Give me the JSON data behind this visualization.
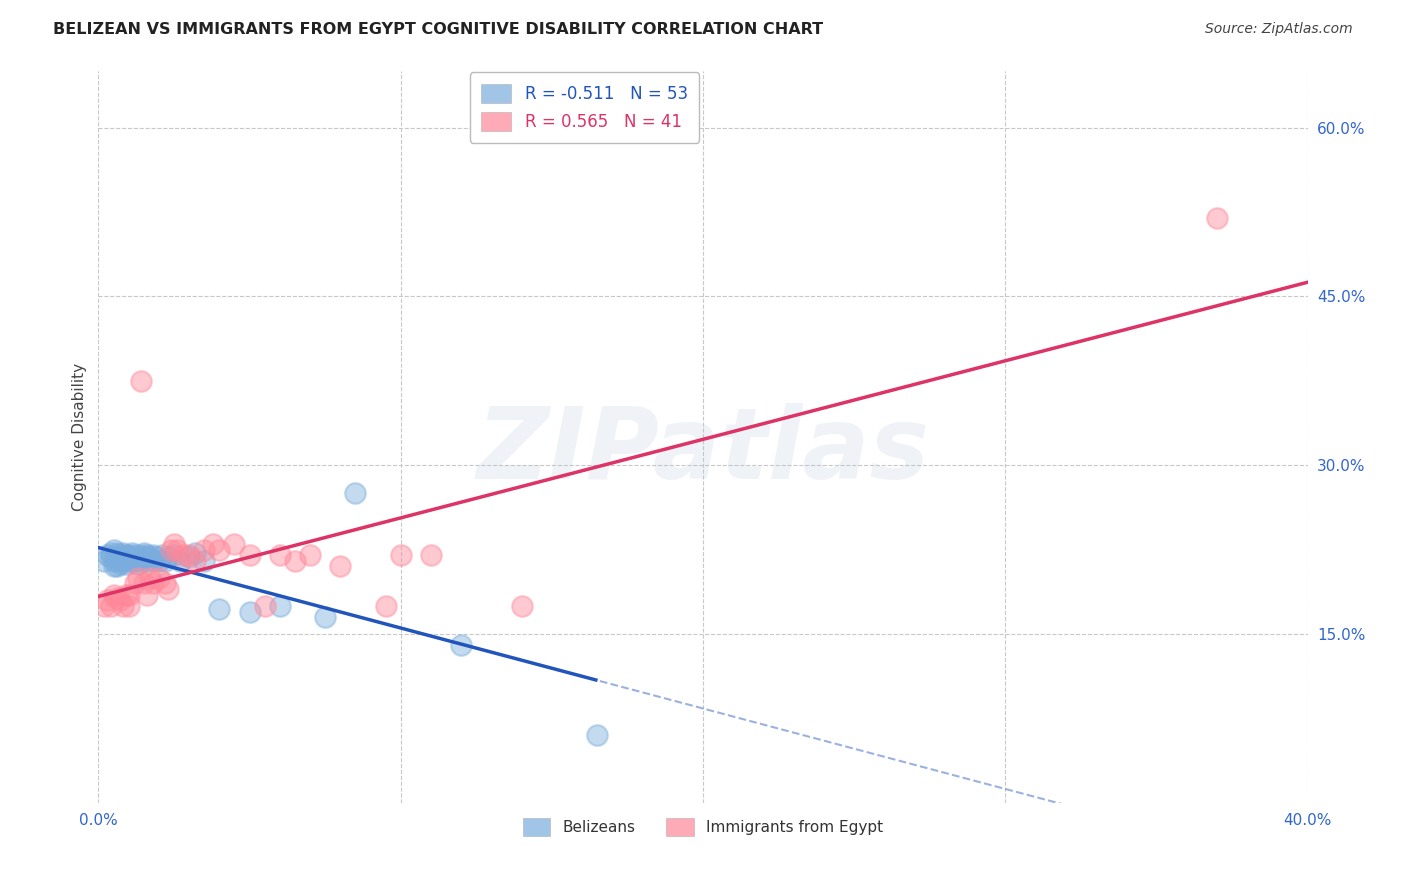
{
  "title": "BELIZEAN VS IMMIGRANTS FROM EGYPT COGNITIVE DISABILITY CORRELATION CHART",
  "source": "Source: ZipAtlas.com",
  "ylabel": "Cognitive Disability",
  "xlim": [
    0.0,
    0.4
  ],
  "ylim": [
    0.0,
    0.65
  ],
  "xtick_positions": [
    0.0,
    0.1,
    0.2,
    0.3,
    0.4
  ],
  "xtick_labels": [
    "0.0%",
    "",
    "",
    "",
    "40.0%"
  ],
  "ytick_vals_right": [
    0.15,
    0.3,
    0.45,
    0.6
  ],
  "ytick_labels_right": [
    "15.0%",
    "30.0%",
    "45.0%",
    "60.0%"
  ],
  "background_color": "#ffffff",
  "grid_color": "#c8c8c8",
  "watermark_text": "ZIPatlas",
  "legend_r1": "R = -0.511",
  "legend_n1": "N = 53",
  "legend_r2": "R = 0.565",
  "legend_n2": "N = 41",
  "blue_scatter_color": "#7aaddd",
  "pink_scatter_color": "#ff8899",
  "blue_line_color": "#2255bb",
  "pink_line_color": "#dd3366",
  "belizean_x": [
    0.002,
    0.003,
    0.004,
    0.004,
    0.005,
    0.005,
    0.005,
    0.006,
    0.006,
    0.006,
    0.007,
    0.007,
    0.007,
    0.008,
    0.008,
    0.008,
    0.009,
    0.009,
    0.009,
    0.01,
    0.01,
    0.011,
    0.011,
    0.012,
    0.012,
    0.013,
    0.013,
    0.014,
    0.014,
    0.015,
    0.015,
    0.016,
    0.016,
    0.017,
    0.018,
    0.018,
    0.019,
    0.02,
    0.021,
    0.022,
    0.023,
    0.025,
    0.027,
    0.03,
    0.032,
    0.035,
    0.04,
    0.05,
    0.06,
    0.075,
    0.085,
    0.12,
    0.165
  ],
  "belizean_y": [
    0.215,
    0.22,
    0.218,
    0.222,
    0.225,
    0.21,
    0.215,
    0.218,
    0.222,
    0.21,
    0.215,
    0.22,
    0.212,
    0.218,
    0.222,
    0.215,
    0.22,
    0.212,
    0.218,
    0.22,
    0.215,
    0.218,
    0.222,
    0.215,
    0.22,
    0.218,
    0.212,
    0.22,
    0.215,
    0.218,
    0.222,
    0.215,
    0.22,
    0.218,
    0.215,
    0.22,
    0.218,
    0.215,
    0.22,
    0.215,
    0.218,
    0.22,
    0.215,
    0.218,
    0.222,
    0.215,
    0.172,
    0.17,
    0.175,
    0.165,
    0.275,
    0.14,
    0.06
  ],
  "egypt_x": [
    0.002,
    0.003,
    0.004,
    0.005,
    0.006,
    0.007,
    0.008,
    0.009,
    0.01,
    0.01,
    0.012,
    0.013,
    0.014,
    0.015,
    0.016,
    0.017,
    0.018,
    0.02,
    0.022,
    0.023,
    0.024,
    0.025,
    0.026,
    0.028,
    0.03,
    0.032,
    0.035,
    0.038,
    0.04,
    0.045,
    0.05,
    0.055,
    0.06,
    0.065,
    0.07,
    0.08,
    0.095,
    0.1,
    0.11,
    0.14,
    0.37
  ],
  "egypt_y": [
    0.175,
    0.18,
    0.175,
    0.185,
    0.182,
    0.18,
    0.175,
    0.185,
    0.175,
    0.185,
    0.195,
    0.2,
    0.375,
    0.195,
    0.185,
    0.2,
    0.195,
    0.2,
    0.195,
    0.19,
    0.225,
    0.23,
    0.225,
    0.22,
    0.22,
    0.215,
    0.225,
    0.23,
    0.225,
    0.23,
    0.22,
    0.175,
    0.22,
    0.215,
    0.22,
    0.21,
    0.175,
    0.22,
    0.22,
    0.175,
    0.52
  ]
}
